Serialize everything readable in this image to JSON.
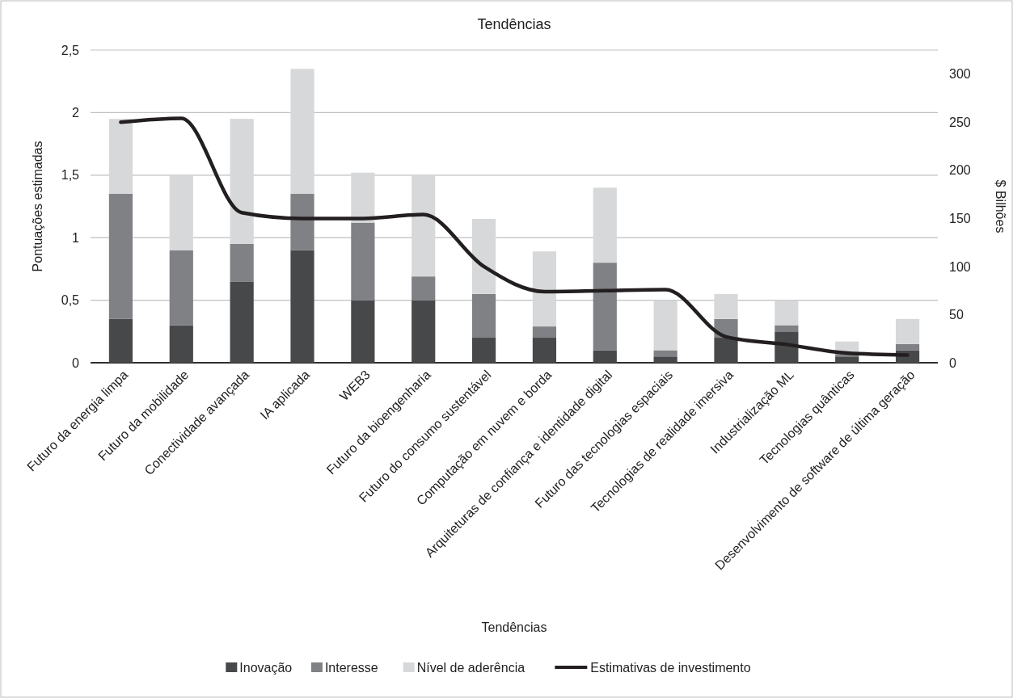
{
  "chart_data": {
    "type": "bar",
    "title": "Tendências",
    "xlabel": "Tendências",
    "ylabel": "Pontuações estimadas",
    "y2label": "$ Bilhões",
    "categories": [
      "Futuro da energia limpa",
      "Futuro da mobilidade",
      "Conectividade avançada",
      "IA aplicada",
      "WEB3",
      "Futuro da bioengenharia",
      "Futuro do consumo sustentável",
      "Computação em nuvem e borda",
      "Arquiteturas de confiança e identidade digital",
      "Futuro das tecnologias espaciais",
      "Tecnologias de realidade imersiva",
      "Industrialização ML",
      "Tecnologias quânticas",
      "Desenvolvimento de software de última geração"
    ],
    "stacked": true,
    "series": [
      {
        "name": "Inovação",
        "color": "#474849",
        "values": [
          0.35,
          0.3,
          0.65,
          0.9,
          0.5,
          0.5,
          0.2,
          0.2,
          0.1,
          0.05,
          0.2,
          0.25,
          0.05,
          0.1
        ]
      },
      {
        "name": "Interesse",
        "color": "#808184",
        "values": [
          1.0,
          0.6,
          0.3,
          0.45,
          0.62,
          0.19,
          0.35,
          0.09,
          0.7,
          0.05,
          0.15,
          0.05,
          0.02,
          0.05
        ]
      },
      {
        "name": "Nível de aderência",
        "color": "#d7d8da",
        "values": [
          0.6,
          0.6,
          1.0,
          1.0,
          0.4,
          0.81,
          0.6,
          0.6,
          0.6,
          0.4,
          0.2,
          0.2,
          0.1,
          0.2
        ]
      },
      {
        "name": "Estimativas de investimento",
        "type": "line",
        "axis": "y2",
        "color": "#231f20",
        "values": [
          250,
          254,
          156,
          150,
          150,
          154,
          100,
          74,
          75,
          76,
          27,
          19,
          10,
          8
        ]
      }
    ],
    "ylim": [
      0,
      2.5
    ],
    "yticks": [
      0,
      {
        "value": 0.5,
        "label": "0,5"
      },
      1,
      {
        "value": 1.5,
        "label": "1,5"
      },
      2,
      {
        "value": 2.5,
        "label": "2,5"
      }
    ],
    "y2lim": [
      0,
      325
    ],
    "y2ticks": [
      0,
      50,
      100,
      150,
      200,
      250,
      300
    ],
    "grid": "y",
    "legend": "bottom",
    "marker": "none",
    "line_style": "solid"
  }
}
